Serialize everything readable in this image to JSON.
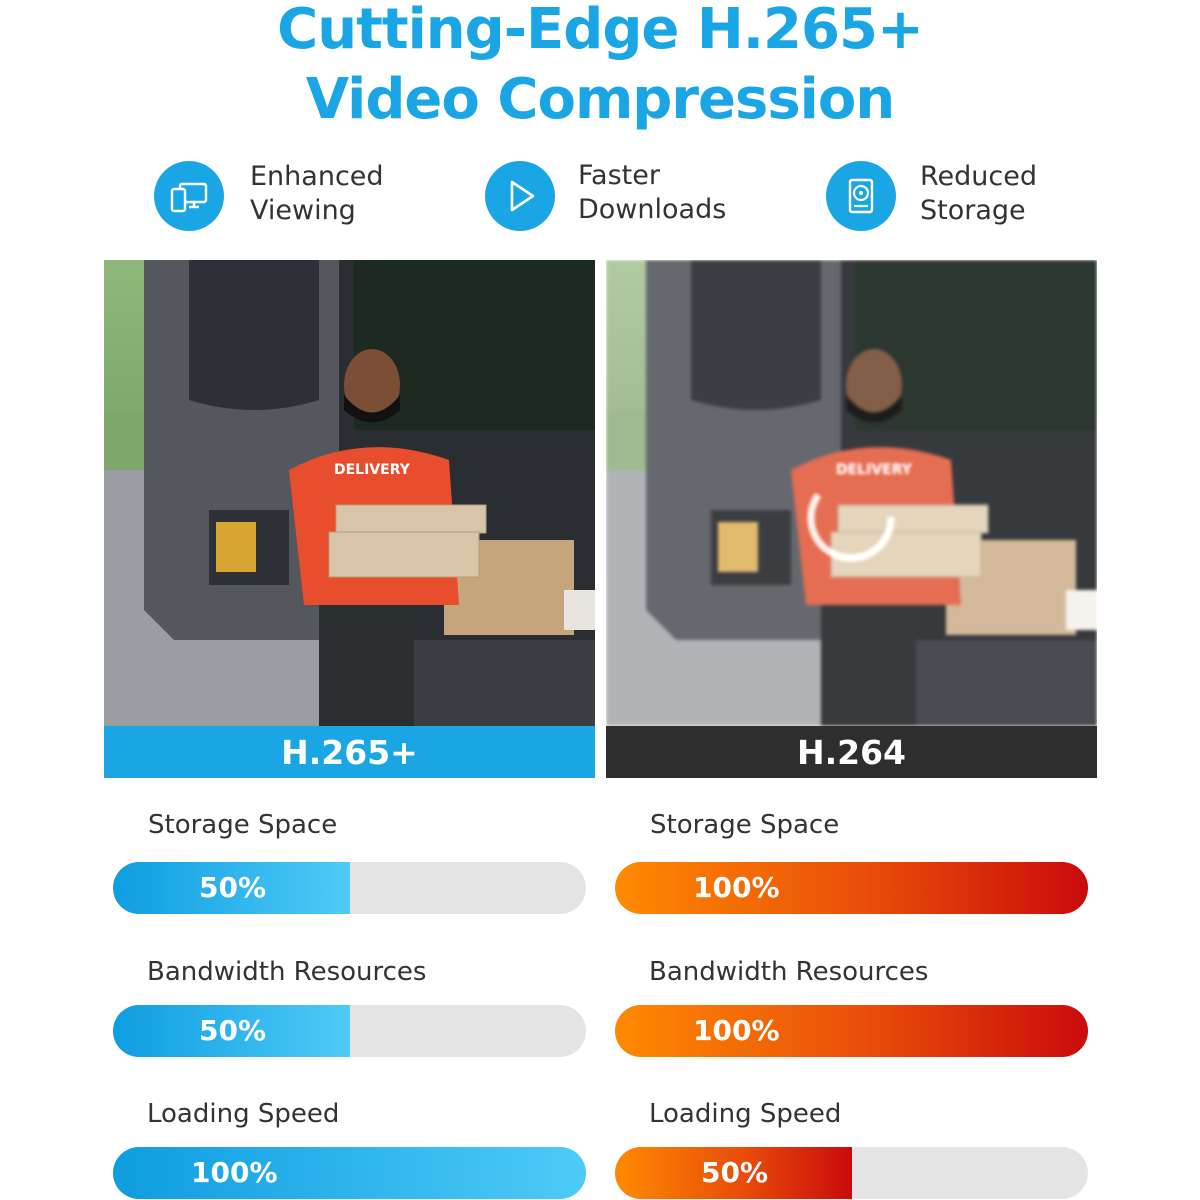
{
  "title": {
    "line1": "Cutting-Edge H.265+",
    "line2": "Video Compression"
  },
  "features": [
    {
      "line1": "Enhanced",
      "line2": "Viewing",
      "icon": "devices-icon"
    },
    {
      "line1": "Faster",
      "line2": "Downloads",
      "icon": "play-icon"
    },
    {
      "line1": "Reduced",
      "line2": "Storage",
      "icon": "hard-drive-icon"
    }
  ],
  "photos": {
    "left": {
      "caption": "H.265+",
      "shirt_text": "DELIVERY"
    },
    "right": {
      "caption": "H.264",
      "shirt_text": "DELIVERY"
    }
  },
  "metrics": {
    "h265": [
      {
        "label": "Storage Space",
        "value_text": "50%",
        "value": 50
      },
      {
        "label": "Bandwidth Resources",
        "value_text": "50%",
        "value": 50
      },
      {
        "label": "Loading Speed",
        "value_text": "100%",
        "value": 100
      }
    ],
    "h264": [
      {
        "label": "Storage Space",
        "value_text": "100%",
        "value": 100
      },
      {
        "label": "Bandwidth Resources",
        "value_text": "100%",
        "value": 100
      },
      {
        "label": "Loading Speed",
        "value_text": "50%",
        "value": 50
      }
    ]
  },
  "colors": {
    "brand_blue": "#1aa6e4",
    "dark_caption": "#2e2e2e",
    "bar_track": "#e4e4e4",
    "orange": "#ff8a00",
    "red": "#c90b0b"
  }
}
